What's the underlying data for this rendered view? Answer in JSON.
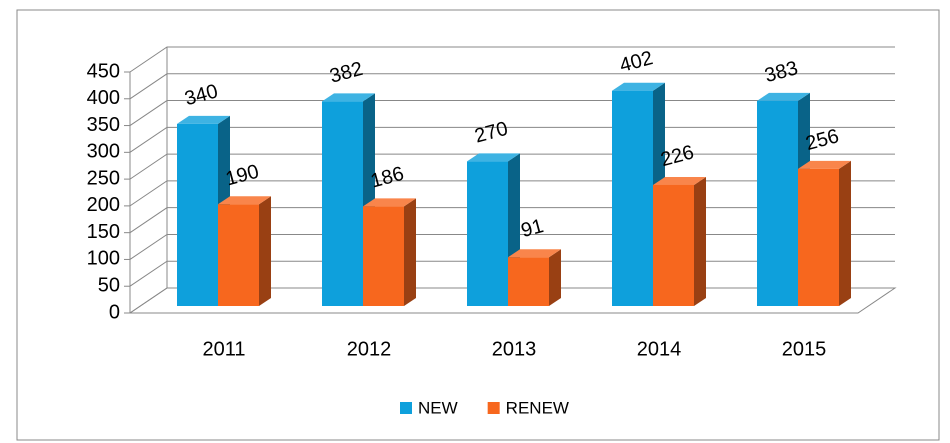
{
  "chart_data": {
    "type": "bar3d",
    "categories": [
      "2011",
      "2012",
      "2013",
      "2014",
      "2015"
    ],
    "series": [
      {
        "name": "NEW",
        "color": "#0ea0dc",
        "values": [
          340,
          382,
          270,
          402,
          383
        ]
      },
      {
        "name": "RENEW",
        "color": "#f7671e",
        "values": [
          190,
          186,
          91,
          226,
          256
        ]
      }
    ],
    "ylim": [
      0,
      450
    ],
    "yticks": [
      0,
      50,
      100,
      150,
      200,
      250,
      300,
      350,
      400,
      450
    ],
    "grid": true,
    "legend": "bottom"
  }
}
